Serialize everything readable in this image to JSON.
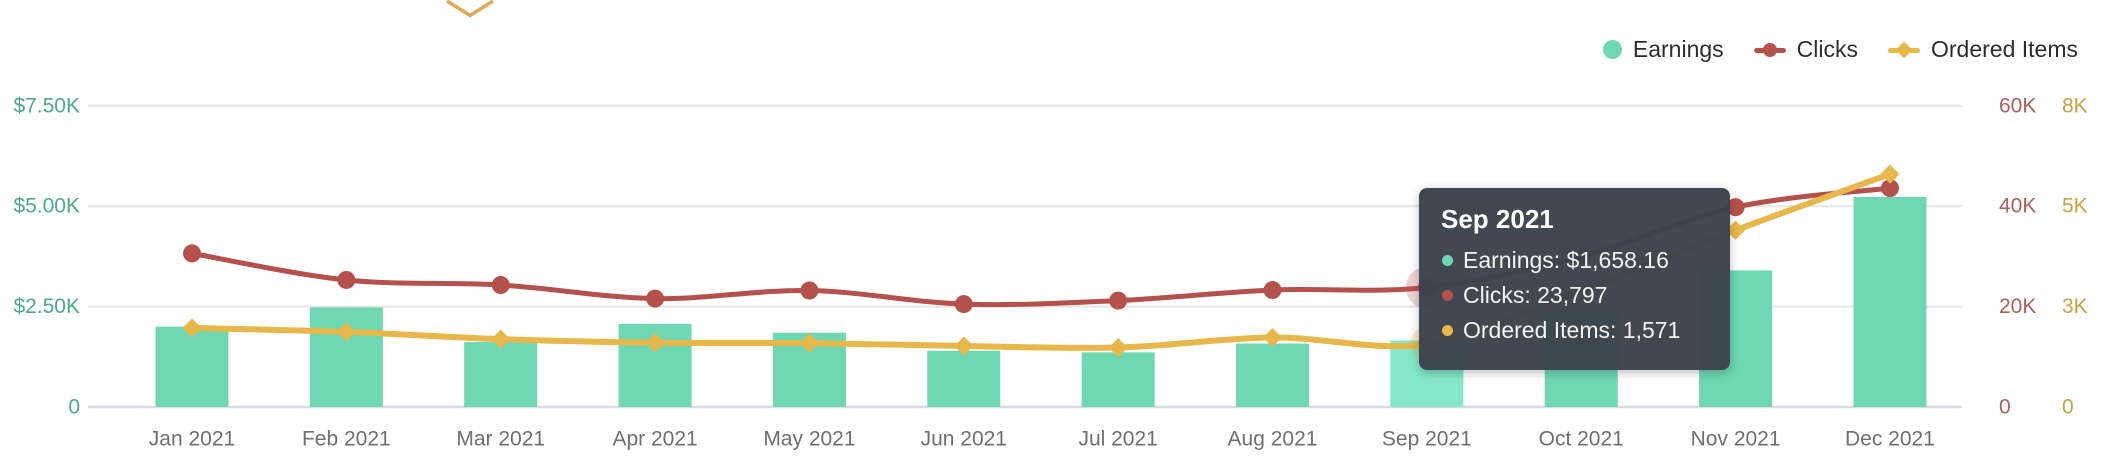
{
  "page": {
    "background": "#ffffff"
  },
  "decoration": {
    "chevron_color": "#dcab57"
  },
  "chart_data": {
    "type": "combo",
    "x_categories": [
      "Jan 2021",
      "Feb 2021",
      "Mar 2021",
      "Apr 2021",
      "May 2021",
      "Jun 2021",
      "Jul 2021",
      "Aug 2021",
      "Sep 2021",
      "Oct 2021",
      "Nov 2021",
      "Dec 2021"
    ],
    "series": [
      {
        "name": "Earnings",
        "type": "bar",
        "axis": "earnings",
        "color": "#6fd7b2",
        "highlight_color": "#84e8c8",
        "values": [
          2000,
          2480,
          1620,
          2070,
          1850,
          1400,
          1360,
          1580,
          1658.16,
          2400,
          3400,
          5230
        ]
      },
      {
        "name": "Clicks",
        "type": "line",
        "axis": "clicks",
        "color": "#b5514d",
        "marker": "circle",
        "values": [
          30600,
          25300,
          24300,
          21600,
          23200,
          20500,
          21200,
          23300,
          23797,
          30000,
          39800,
          43600
        ]
      },
      {
        "name": "Ordered Items",
        "type": "line",
        "axis": "ordered",
        "color": "#e8b74b",
        "marker": "diamond",
        "values": [
          1970,
          1870,
          1690,
          1600,
          1590,
          1520,
          1480,
          1730,
          1571,
          2900,
          4400,
          5800
        ]
      }
    ],
    "axes": {
      "earnings": {
        "side": "left",
        "color": "#4da88c",
        "range": [
          0,
          7500
        ],
        "ticks": [
          {
            "label": "$7.50K",
            "value": 7500
          },
          {
            "label": "$5.00K",
            "value": 5000
          },
          {
            "label": "$2.50K",
            "value": 2500
          },
          {
            "label": "0",
            "value": 0
          }
        ]
      },
      "clicks": {
        "side": "right",
        "color": "#aa625e",
        "range": [
          0,
          60000
        ],
        "ticks": [
          {
            "label": "60K",
            "value": 60000
          },
          {
            "label": "40K",
            "value": 40000
          },
          {
            "label": "20K",
            "value": 20000
          },
          {
            "label": "0",
            "value": 0
          }
        ]
      },
      "ordered": {
        "side": "right_outer",
        "color": "#c7a245",
        "range": [
          0,
          7500
        ],
        "ticks": [
          {
            "label": "8K",
            "value": 7500
          },
          {
            "label": "5K",
            "value": 5000
          },
          {
            "label": "3K",
            "value": 2500
          },
          {
            "label": "0",
            "value": 0
          }
        ]
      }
    },
    "grid": true,
    "legend_position": "top-right",
    "x_label_color": "#6f6f6f",
    "highlighted_index": 8,
    "tooltip": {
      "title": "Sep 2021",
      "rows": [
        {
          "series": "Earnings",
          "text": "Earnings: $1,658.16"
        },
        {
          "series": "Clicks",
          "text": "Clicks: 23,797"
        },
        {
          "series": "Ordered Items",
          "text": "Ordered Items: 1,571"
        }
      ]
    },
    "notes": "Oct 2021 bar and line values are obscured by the hover tooltip; Oct numbers are estimates interpolated under the tooltip."
  }
}
